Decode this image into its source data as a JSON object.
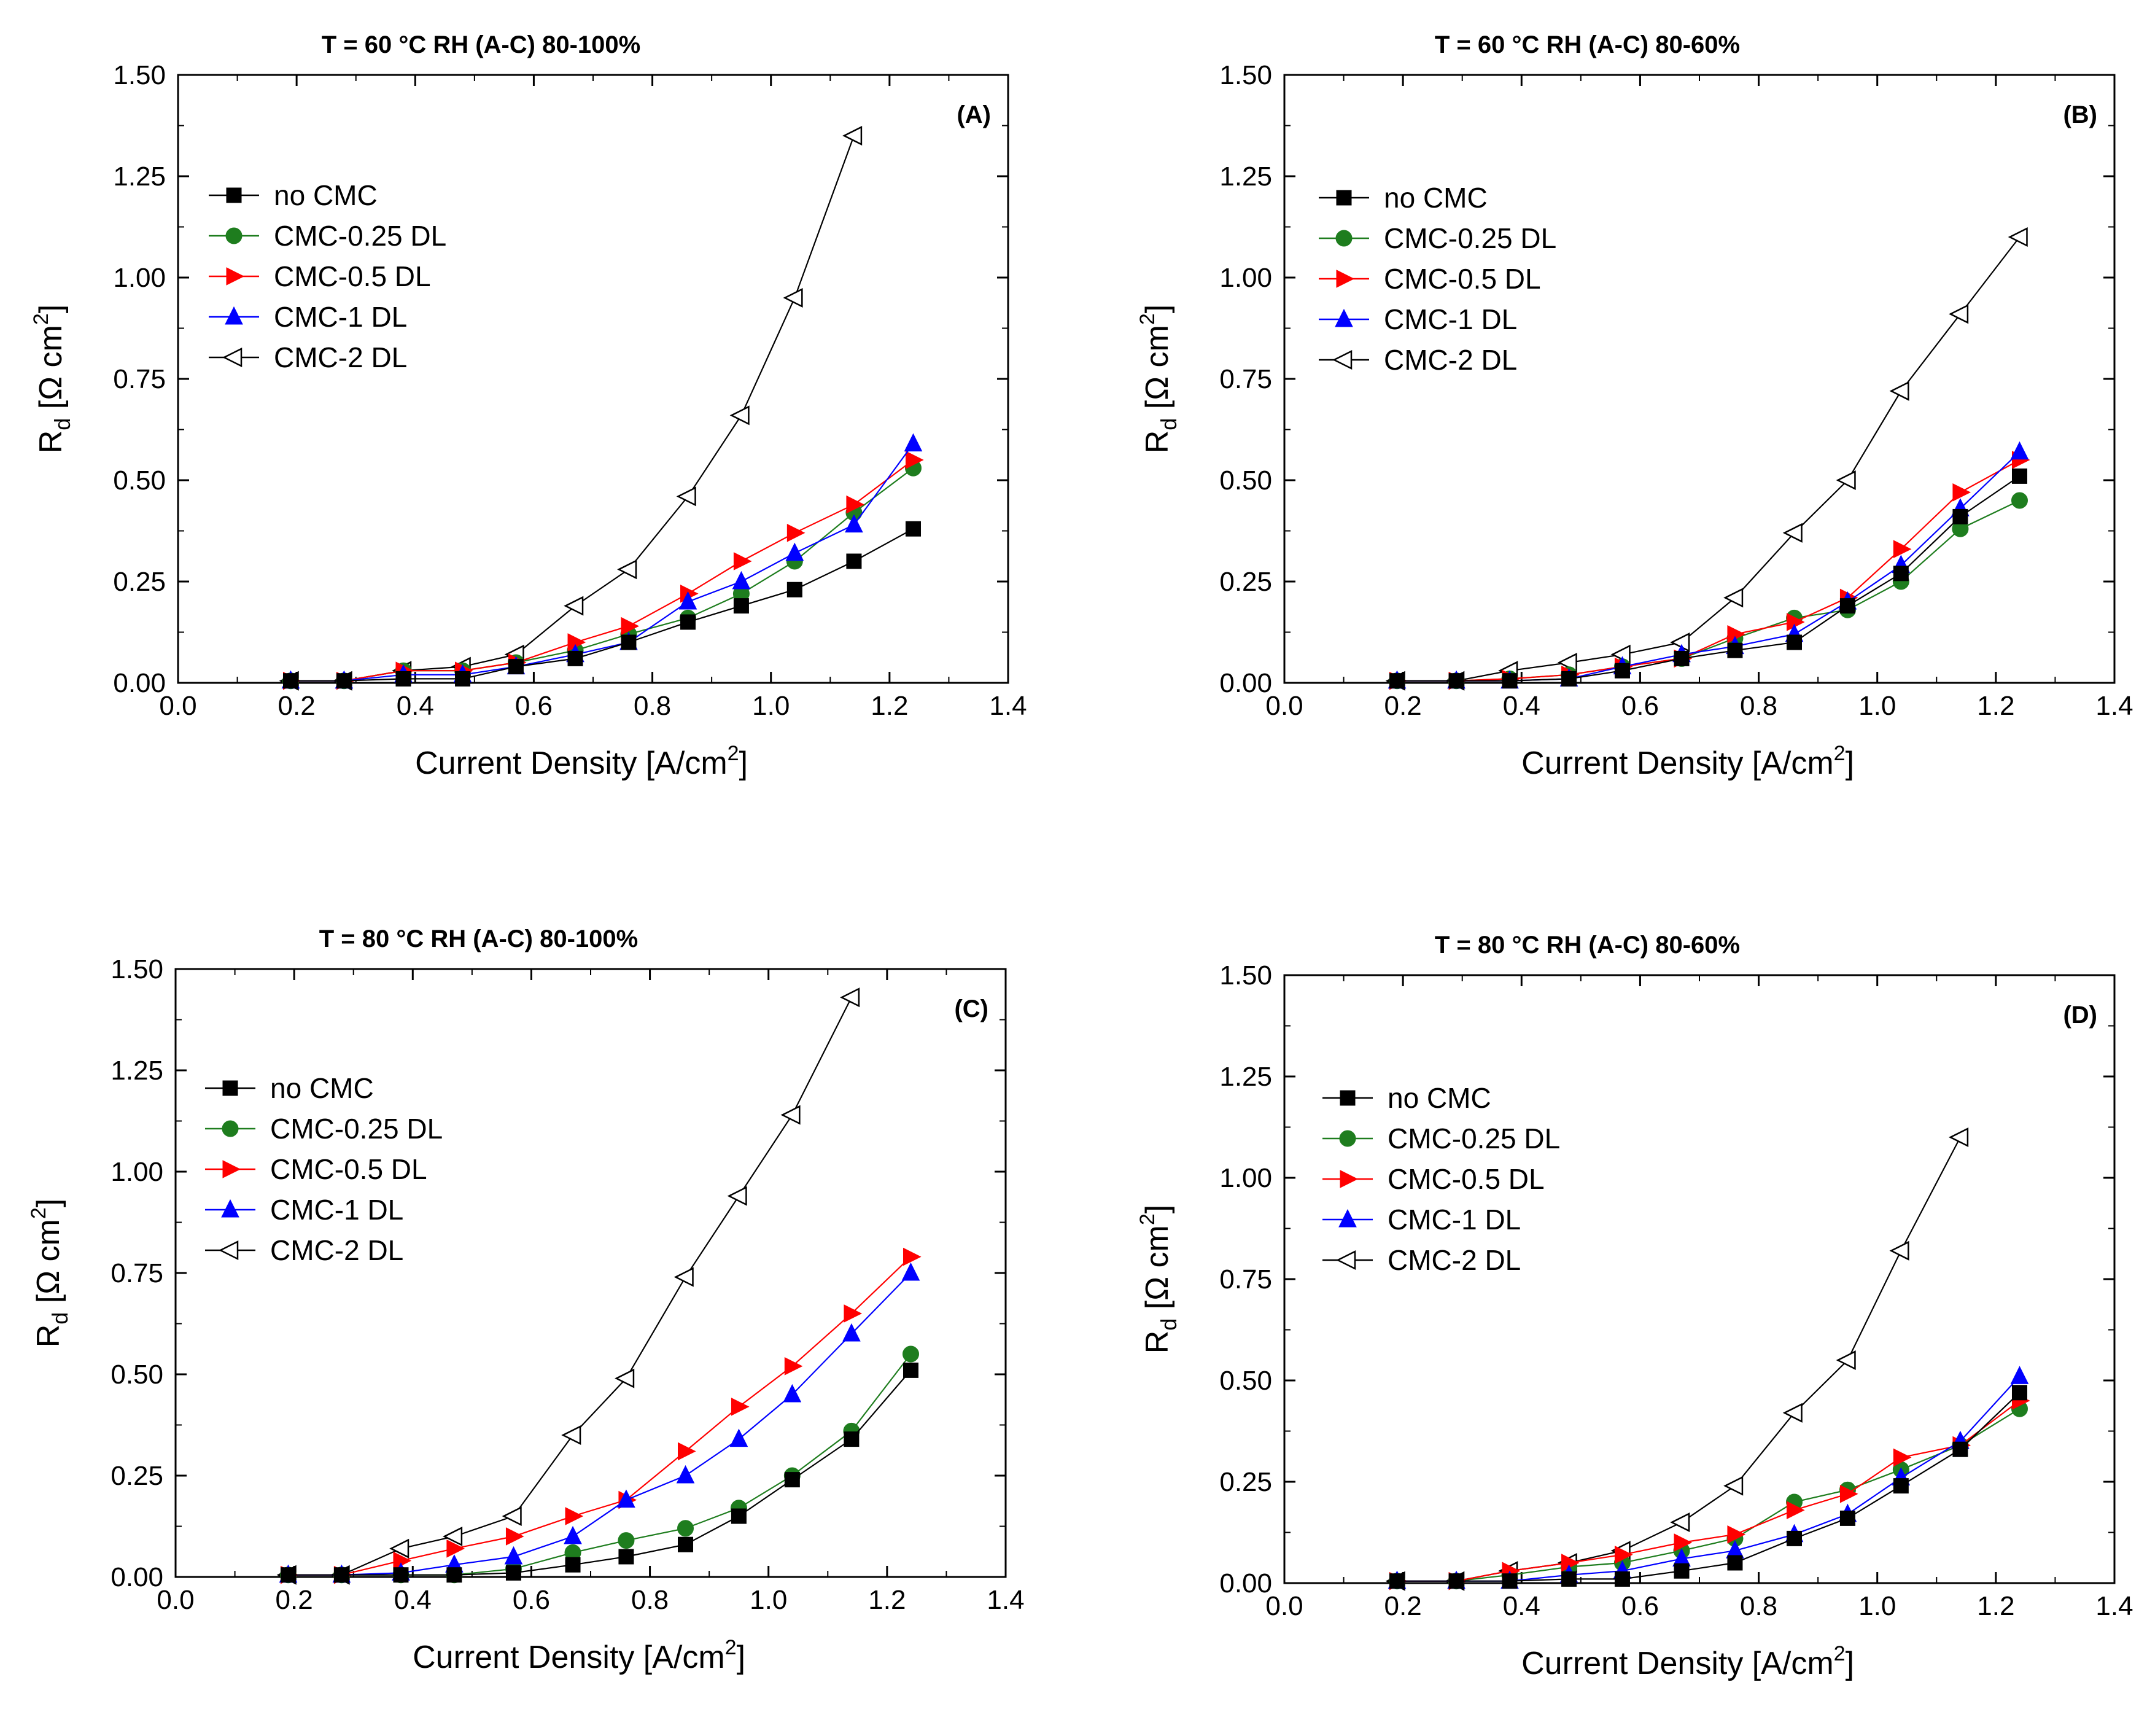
{
  "figure": {
    "legend_labels": [
      "no CMC",
      "CMC-0.25 DL",
      "CMC-0.5 DL",
      "CMC-1 DL",
      "CMC-2 DL"
    ],
    "colors": {
      "no_cmc": "#000000",
      "cmc_025": "#1e7d1e",
      "cmc_05": "#ff0000",
      "cmc_1": "#0000ff",
      "cmc_2": "#000000"
    },
    "markers": [
      "square",
      "circle",
      "triangle-right",
      "triangle-up",
      "triangle-left-open"
    ],
    "x_axis_label": "Current Density [A/cm",
    "x_axis_superscript": "2",
    "x_axis_suffix": "]",
    "y_axis_label_main": "R",
    "y_axis_label_sub": "d",
    "y_axis_label_unit": " [Ω cm",
    "y_axis_label_sup": "2",
    "y_axis_label_close": "]",
    "x_ticks": [
      "0.0",
      "0.2",
      "0.4",
      "0.6",
      "0.8",
      "1.0",
      "1.2",
      "1.4"
    ],
    "y_ticks": [
      "0.00",
      "0.25",
      "0.50",
      "0.75",
      "1.00",
      "1.25",
      "1.50"
    ]
  },
  "chart_data": [
    {
      "type": "line",
      "panel_label": "(A)",
      "title": "T = 60 °C   RH (A-C) 80-100%",
      "xlim": [
        0.0,
        1.4
      ],
      "ylim": [
        0.0,
        1.5
      ],
      "series": [
        {
          "name": "no CMC",
          "x": [
            0.19,
            0.28,
            0.38,
            0.48,
            0.57,
            0.67,
            0.76,
            0.86,
            0.95,
            1.04,
            1.14,
            1.24
          ],
          "y": [
            0.005,
            0.005,
            0.01,
            0.01,
            0.04,
            0.06,
            0.1,
            0.15,
            0.19,
            0.23,
            0.3,
            0.38
          ]
        },
        {
          "name": "CMC-0.25 DL",
          "x": [
            0.19,
            0.28,
            0.38,
            0.48,
            0.57,
            0.67,
            0.76,
            0.86,
            0.95,
            1.04,
            1.14,
            1.24
          ],
          "y": [
            0.005,
            0.005,
            0.03,
            0.03,
            0.05,
            0.08,
            0.12,
            0.16,
            0.22,
            0.3,
            0.42,
            0.53
          ]
        },
        {
          "name": "CMC-0.5 DL",
          "x": [
            0.19,
            0.28,
            0.38,
            0.48,
            0.57,
            0.67,
            0.76,
            0.86,
            0.95,
            1.04,
            1.14,
            1.24
          ],
          "y": [
            0.005,
            0.005,
            0.03,
            0.03,
            0.05,
            0.1,
            0.14,
            0.22,
            0.3,
            0.37,
            0.44,
            0.55
          ]
        },
        {
          "name": "CMC-1 DL",
          "x": [
            0.19,
            0.28,
            0.38,
            0.48,
            0.57,
            0.67,
            0.76,
            0.86,
            0.95,
            1.04,
            1.14,
            1.24
          ],
          "y": [
            0.005,
            0.005,
            0.02,
            0.02,
            0.04,
            0.07,
            0.1,
            0.2,
            0.25,
            0.32,
            0.39,
            0.59
          ]
        },
        {
          "name": "CMC-2 DL",
          "x": [
            0.19,
            0.28,
            0.38,
            0.48,
            0.57,
            0.67,
            0.76,
            0.86,
            0.95,
            1.04,
            1.14
          ],
          "y": [
            0.005,
            0.005,
            0.03,
            0.04,
            0.07,
            0.19,
            0.28,
            0.46,
            0.66,
            0.95,
            1.35
          ]
        }
      ]
    },
    {
      "type": "line",
      "panel_label": "(B)",
      "title": "T = 60 °C   RH (A-C) 80-60%",
      "xlim": [
        0.0,
        1.4
      ],
      "ylim": [
        0.0,
        1.5
      ],
      "series": [
        {
          "name": "no CMC",
          "x": [
            0.19,
            0.29,
            0.38,
            0.48,
            0.57,
            0.67,
            0.76,
            0.86,
            0.95,
            1.04,
            1.14,
            1.24
          ],
          "y": [
            0.005,
            0.005,
            0.005,
            0.01,
            0.03,
            0.06,
            0.08,
            0.1,
            0.19,
            0.27,
            0.41,
            0.51
          ]
        },
        {
          "name": "CMC-0.25 DL",
          "x": [
            0.19,
            0.29,
            0.38,
            0.48,
            0.57,
            0.67,
            0.76,
            0.86,
            0.95,
            1.04,
            1.14,
            1.24
          ],
          "y": [
            0.005,
            0.005,
            0.01,
            0.02,
            0.04,
            0.06,
            0.11,
            0.16,
            0.18,
            0.25,
            0.38,
            0.45
          ]
        },
        {
          "name": "CMC-0.5 DL",
          "x": [
            0.19,
            0.29,
            0.38,
            0.48,
            0.57,
            0.67,
            0.76,
            0.86,
            0.95,
            1.04,
            1.14,
            1.24
          ],
          "y": [
            0.005,
            0.005,
            0.01,
            0.02,
            0.04,
            0.06,
            0.12,
            0.15,
            0.21,
            0.33,
            0.47,
            0.55
          ]
        },
        {
          "name": "CMC-1 DL",
          "x": [
            0.19,
            0.29,
            0.38,
            0.48,
            0.57,
            0.67,
            0.76,
            0.86,
            0.95,
            1.04,
            1.14,
            1.24
          ],
          "y": [
            0.005,
            0.005,
            0.005,
            0.01,
            0.04,
            0.07,
            0.09,
            0.12,
            0.2,
            0.29,
            0.43,
            0.57
          ]
        },
        {
          "name": "CMC-2 DL",
          "x": [
            0.19,
            0.29,
            0.38,
            0.48,
            0.57,
            0.67,
            0.76,
            0.86,
            0.95,
            1.04,
            1.14,
            1.24
          ],
          "y": [
            0.005,
            0.005,
            0.03,
            0.05,
            0.07,
            0.1,
            0.21,
            0.37,
            0.5,
            0.72,
            0.91,
            1.1
          ]
        }
      ]
    },
    {
      "type": "line",
      "panel_label": "(C)",
      "title": "T = 80 °C   RH (A-C) 80-100%",
      "xlim": [
        0.0,
        1.4
      ],
      "ylim": [
        0.0,
        1.5
      ],
      "series": [
        {
          "name": "no CMC",
          "x": [
            0.19,
            0.28,
            0.38,
            0.47,
            0.57,
            0.67,
            0.76,
            0.86,
            0.95,
            1.04,
            1.14,
            1.24
          ],
          "y": [
            0.005,
            0.005,
            0.005,
            0.005,
            0.01,
            0.03,
            0.05,
            0.08,
            0.15,
            0.24,
            0.34,
            0.51
          ]
        },
        {
          "name": "CMC-0.25 DL",
          "x": [
            0.19,
            0.28,
            0.38,
            0.47,
            0.57,
            0.67,
            0.76,
            0.86,
            0.95,
            1.04,
            1.14,
            1.24
          ],
          "y": [
            0.005,
            0.005,
            0.005,
            0.005,
            0.02,
            0.06,
            0.09,
            0.12,
            0.17,
            0.25,
            0.36,
            0.55
          ]
        },
        {
          "name": "CMC-0.5 DL",
          "x": [
            0.19,
            0.28,
            0.38,
            0.47,
            0.57,
            0.67,
            0.76,
            0.86,
            0.95,
            1.04,
            1.14,
            1.24
          ],
          "y": [
            0.005,
            0.005,
            0.04,
            0.07,
            0.1,
            0.15,
            0.19,
            0.31,
            0.42,
            0.52,
            0.65,
            0.79
          ]
        },
        {
          "name": "CMC-1 DL",
          "x": [
            0.19,
            0.28,
            0.38,
            0.47,
            0.57,
            0.67,
            0.76,
            0.86,
            0.95,
            1.04,
            1.14,
            1.24
          ],
          "y": [
            0.005,
            0.005,
            0.01,
            0.03,
            0.05,
            0.1,
            0.19,
            0.25,
            0.34,
            0.45,
            0.6,
            0.75
          ]
        },
        {
          "name": "CMC-2 DL",
          "x": [
            0.19,
            0.28,
            0.38,
            0.47,
            0.57,
            0.67,
            0.76,
            0.86,
            0.95,
            1.04,
            1.14
          ],
          "y": [
            0.005,
            0.005,
            0.07,
            0.1,
            0.15,
            0.35,
            0.49,
            0.74,
            0.94,
            1.14,
            1.43
          ]
        }
      ]
    },
    {
      "type": "line",
      "panel_label": "(D)",
      "title": "T = 80 °C   RH (A-C) 80-60%",
      "xlim": [
        0.0,
        1.4
      ],
      "ylim": [
        0.0,
        1.5
      ],
      "series": [
        {
          "name": "no CMC",
          "x": [
            0.19,
            0.29,
            0.38,
            0.48,
            0.57,
            0.67,
            0.76,
            0.86,
            0.95,
            1.04,
            1.14,
            1.24
          ],
          "y": [
            0.005,
            0.005,
            0.005,
            0.01,
            0.01,
            0.03,
            0.05,
            0.11,
            0.16,
            0.24,
            0.33,
            0.47
          ]
        },
        {
          "name": "CMC-0.25 DL",
          "x": [
            0.19,
            0.29,
            0.38,
            0.48,
            0.57,
            0.67,
            0.76,
            0.86,
            0.95,
            1.04,
            1.14,
            1.24
          ],
          "y": [
            0.005,
            0.005,
            0.02,
            0.04,
            0.05,
            0.08,
            0.11,
            0.2,
            0.23,
            0.28,
            0.34,
            0.43
          ]
        },
        {
          "name": "CMC-0.5 DL",
          "x": [
            0.19,
            0.29,
            0.38,
            0.48,
            0.57,
            0.67,
            0.76,
            0.86,
            0.95,
            1.04,
            1.14,
            1.24
          ],
          "y": [
            0.005,
            0.005,
            0.03,
            0.05,
            0.07,
            0.1,
            0.12,
            0.18,
            0.22,
            0.31,
            0.34,
            0.45
          ]
        },
        {
          "name": "CMC-1 DL",
          "x": [
            0.19,
            0.29,
            0.38,
            0.48,
            0.57,
            0.67,
            0.76,
            0.86,
            0.95,
            1.04,
            1.14,
            1.24
          ],
          "y": [
            0.005,
            0.005,
            0.005,
            0.02,
            0.03,
            0.06,
            0.08,
            0.12,
            0.17,
            0.26,
            0.35,
            0.51
          ]
        },
        {
          "name": "CMC-2 DL",
          "x": [
            0.19,
            0.29,
            0.38,
            0.48,
            0.57,
            0.67,
            0.76,
            0.86,
            0.95,
            1.04,
            1.14
          ],
          "y": [
            0.005,
            0.005,
            0.03,
            0.05,
            0.08,
            0.15,
            0.24,
            0.42,
            0.55,
            0.82,
            1.1
          ]
        }
      ]
    }
  ]
}
